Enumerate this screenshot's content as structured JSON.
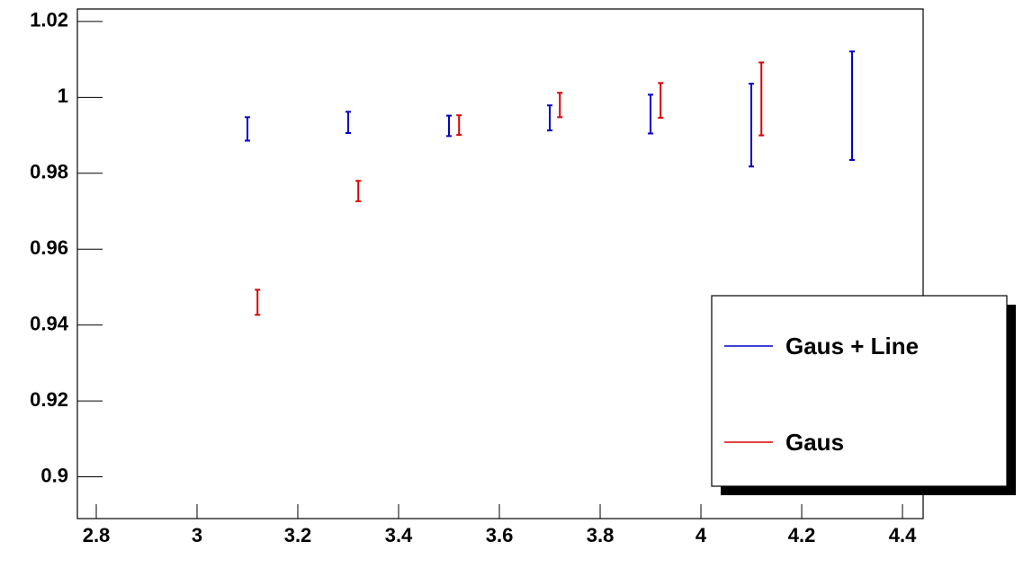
{
  "chart_data": {
    "type": "errorbar",
    "xlim": [
      2.7625,
      4.441
    ],
    "ylim": [
      0.889,
      1.0233
    ],
    "xticks": [
      2.8,
      3,
      3.2,
      3.4,
      3.6,
      3.8,
      4,
      4.2,
      4.4
    ],
    "yticks": [
      0.9,
      0.92,
      0.94,
      0.96,
      0.98,
      1,
      1.02
    ],
    "legend": "lower-right",
    "series": [
      {
        "name": "Gaus + Line",
        "color": "#0000cc",
        "x": [
          3.1,
          3.3,
          3.5,
          3.7,
          3.9,
          4.1,
          4.3
        ],
        "values": [
          0.9917,
          0.9934,
          0.9925,
          0.9946,
          0.9956,
          0.9927,
          0.9978
        ],
        "errors": [
          0.0031,
          0.0028,
          0.0027,
          0.0033,
          0.0051,
          0.0109,
          0.0143
        ]
      },
      {
        "name": "Gaus",
        "color": "#dd0000",
        "x": [
          3.12,
          3.32,
          3.52,
          3.72,
          3.92,
          4.12
        ],
        "values": [
          0.946,
          0.9753,
          0.9927,
          0.998,
          0.9992,
          0.9996
        ],
        "errors": [
          0.0033,
          0.0027,
          0.0026,
          0.0032,
          0.0046,
          0.0096
        ]
      }
    ]
  }
}
